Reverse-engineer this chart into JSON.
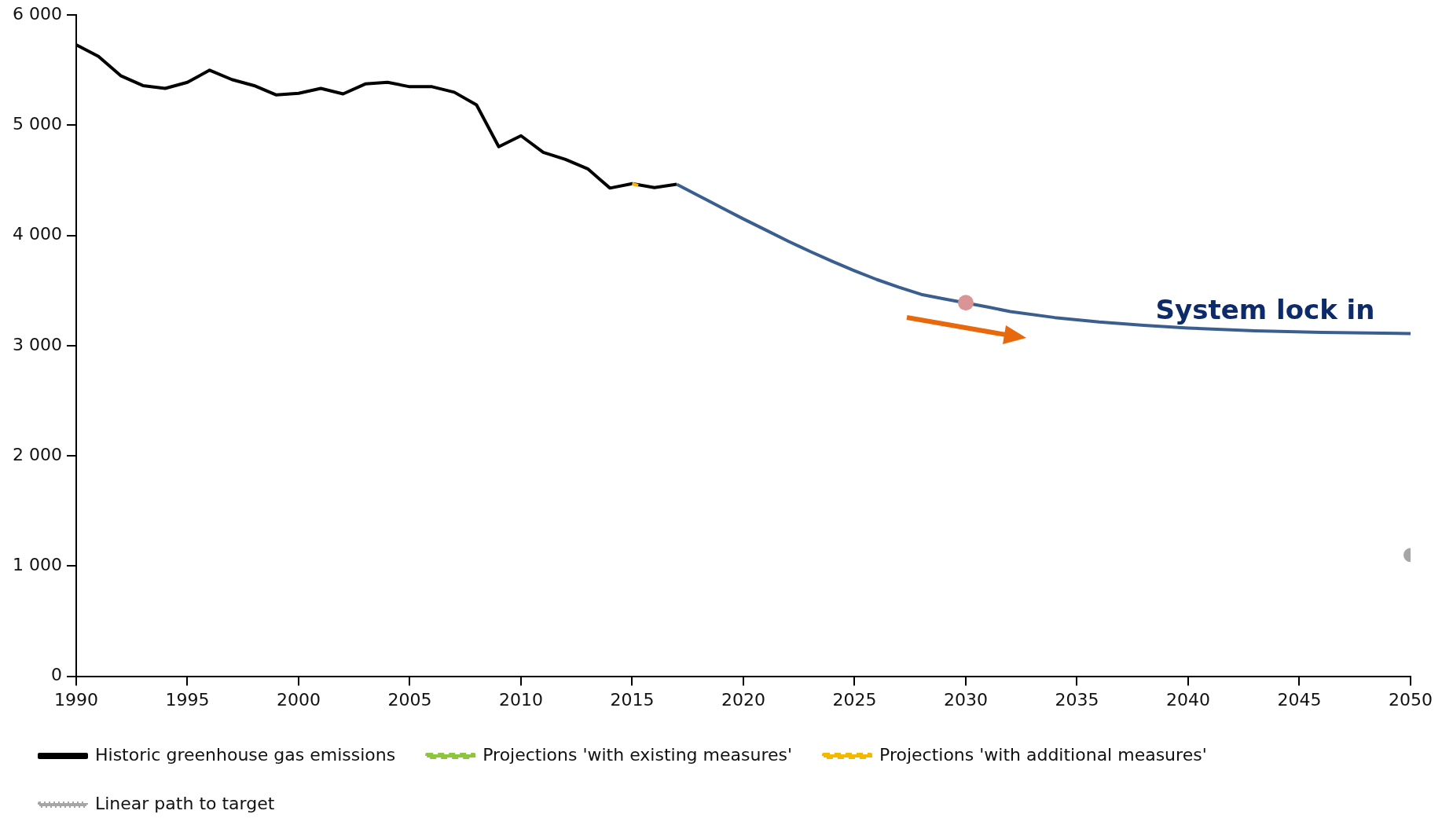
{
  "chart_data": {
    "type": "line",
    "xlim": [
      1990,
      2050
    ],
    "xticks": [
      1990,
      1995,
      2000,
      2005,
      2010,
      2015,
      2020,
      2025,
      2030,
      2035,
      2040,
      2045,
      2050
    ],
    "ylim": [
      0,
      6000
    ],
    "yticks": [
      {
        "value": 0,
        "label": "0"
      },
      {
        "value": 1000,
        "label": "1 000"
      },
      {
        "value": 2000,
        "label": "2 000"
      },
      {
        "value": 3000,
        "label": "3 000"
      },
      {
        "value": 4000,
        "label": "4 000"
      },
      {
        "value": 5000,
        "label": "5 000"
      },
      {
        "value": 6000,
        "label": "6 000"
      }
    ],
    "grid": false,
    "legend": "bottom",
    "marker": "none",
    "series": [
      {
        "name": "Historic greenhouse gas emissions",
        "color": "#000000",
        "line_style": "solid",
        "x": [
          1990,
          1991,
          1992,
          1993,
          1994,
          1995,
          1996,
          1997,
          1998,
          1999,
          2000,
          2001,
          2002,
          2003,
          2004,
          2005,
          2006,
          2007,
          2008,
          2009,
          2010,
          2011,
          2012,
          2013,
          2014,
          2015,
          2016,
          2017
        ],
        "values": [
          5730,
          5625,
          5450,
          5360,
          5335,
          5390,
          5500,
          5415,
          5360,
          5275,
          5290,
          5335,
          5285,
          5375,
          5390,
          5350,
          5350,
          5300,
          5185,
          4805,
          4905,
          4755,
          4690,
          4605,
          4430,
          4470,
          4435,
          4465
        ]
      },
      {
        "name": "Projections 'with existing measures'",
        "color": "#8cc63f",
        "line_style": "dashed"
      },
      {
        "name": "Projections 'with additional measures'",
        "color": "#f5b800",
        "line_style": "dashed",
        "x": [
          2015,
          2015.4
        ],
        "values": [
          4470,
          4445
        ]
      },
      {
        "name": "Linear path to target",
        "color": "#a6a6a6",
        "line_style": "dotted",
        "marker": "circle",
        "x": [
          2050
        ],
        "values": [
          1100
        ]
      },
      {
        "color": "#3a5f8f",
        "line_style": "solid",
        "x": [
          2017,
          2018,
          2019,
          2020,
          2021,
          2022,
          2023,
          2024,
          2025,
          2026,
          2027,
          2028,
          2029,
          2031,
          2032,
          2034,
          2036,
          2038,
          2040,
          2043,
          2046,
          2050
        ],
        "values": [
          4465,
          4360,
          4255,
          4150,
          4050,
          3950,
          3855,
          3765,
          3680,
          3600,
          3530,
          3465,
          3425,
          3350,
          3310,
          3255,
          3215,
          3185,
          3160,
          3135,
          3120,
          3110
        ]
      },
      {
        "type": "scatter",
        "marker": "circle",
        "color": "#d99595",
        "x": [
          2030
        ],
        "values": [
          3390
        ]
      }
    ],
    "annotations": [
      "System lock in"
    ]
  }
}
